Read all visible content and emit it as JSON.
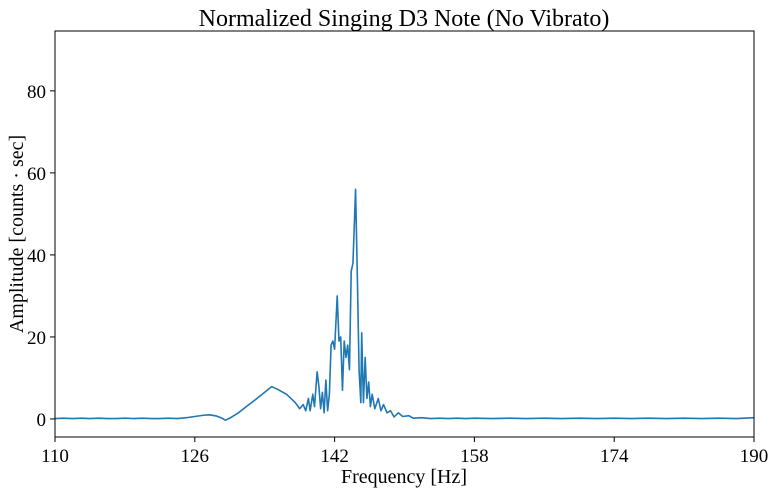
{
  "chart_data": {
    "type": "line",
    "title": "Normalized Singing D3 Note (No Vibrato)",
    "x_label": "Frequency [Hz]",
    "y_label": "Amplitude [counts · sec]",
    "color": "#1f77b4",
    "x": [
      110,
      111,
      112,
      113,
      114,
      115,
      116,
      117,
      118,
      119,
      120,
      121,
      122,
      123,
      124,
      125,
      126,
      127,
      127.7,
      128.5,
      129,
      129.5,
      130,
      131,
      132,
      133,
      134,
      134.8,
      135.5,
      136.5,
      137.5,
      138,
      138.4,
      138.7,
      139,
      139.2,
      139.5,
      139.7,
      140,
      140.2,
      140.4,
      140.6,
      140.8,
      141,
      141.2,
      141.4,
      141.6,
      141.8,
      142,
      142.3,
      142.5,
      142.7,
      142.9,
      143.1,
      143.3,
      143.5,
      143.7,
      143.9,
      144.1,
      144.4,
      144.6,
      144.8,
      145,
      145.1,
      145.3,
      145.5,
      145.7,
      145.9,
      146.1,
      146.3,
      146.6,
      147,
      147.3,
      147.6,
      148,
      148.4,
      148.8,
      149.3,
      149.8,
      150.5,
      151,
      152,
      153,
      154,
      155,
      156,
      157,
      158,
      160,
      162,
      164,
      166,
      168,
      170,
      172,
      174,
      176,
      178,
      180,
      182,
      184,
      186,
      188,
      190
    ],
    "values": [
      0.1,
      0.2,
      0.1,
      0.2,
      0.1,
      0.2,
      0.1,
      0.1,
      0.2,
      0.1,
      0.2,
      0.1,
      0.1,
      0.2,
      0.1,
      0.3,
      0.6,
      0.9,
      1.0,
      0.7,
      0.3,
      -0.3,
      0.2,
      1.5,
      3.2,
      4.8,
      6.5,
      7.9,
      7.2,
      6.0,
      4.0,
      2.5,
      3.5,
      2.0,
      5.0,
      2.0,
      6.0,
      3.0,
      11.5,
      8.0,
      2.5,
      6.5,
      1.5,
      9.5,
      2.0,
      6.0,
      18.0,
      19.0,
      17.0,
      30.0,
      19.0,
      20.0,
      7.0,
      19.0,
      15.0,
      18.0,
      12.0,
      36.0,
      38.0,
      56.0,
      35.0,
      12.0,
      4.0,
      21.0,
      4.0,
      15.0,
      5.0,
      9.0,
      3.0,
      6.0,
      2.5,
      5.0,
      2.0,
      3.5,
      1.5,
      2.0,
      0.5,
      1.5,
      0.6,
      0.8,
      0.2,
      0.3,
      0.1,
      0.2,
      0.1,
      0.2,
      0.1,
      0.2,
      0.1,
      0.2,
      0.1,
      0.2,
      0.1,
      0.2,
      0.1,
      0.2,
      0.1,
      0.2,
      0.1,
      0.2,
      0.1,
      0.2,
      0.1,
      0.3
    ],
    "xlim": [
      110,
      190
    ],
    "ylim": [
      -4.4,
      94.6
    ],
    "xticks": [
      110,
      126,
      142,
      158,
      174,
      190
    ],
    "yticks": [
      0,
      20,
      40,
      60,
      80
    ]
  }
}
